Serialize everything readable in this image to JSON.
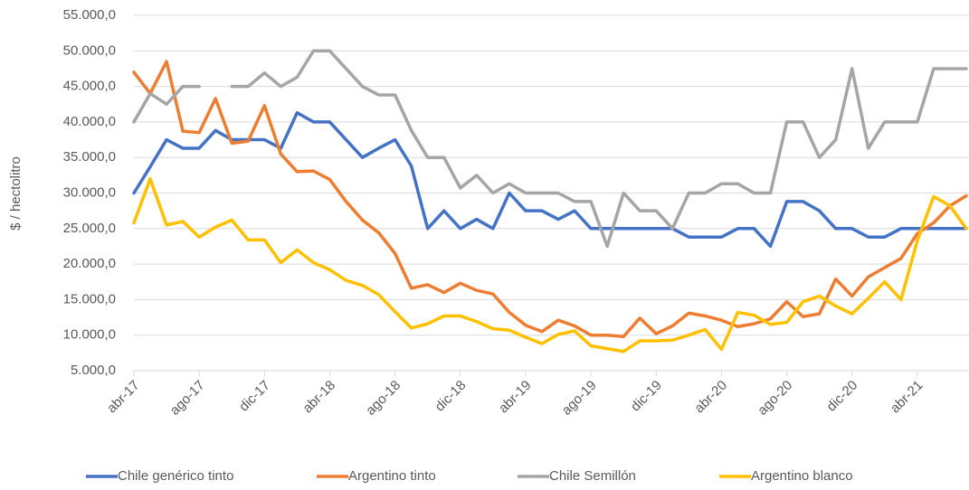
{
  "chart_data": {
    "type": "line",
    "y_label": "$ / hectolitro",
    "categories": [
      "abr-17",
      null,
      null,
      null,
      "ago-17",
      null,
      null,
      null,
      "dic-17",
      null,
      null,
      null,
      "abr-18",
      null,
      null,
      null,
      "ago-18",
      null,
      null,
      null,
      "dic-18",
      null,
      null,
      null,
      "abr-19",
      null,
      null,
      null,
      "ago-19",
      null,
      null,
      null,
      "dic-19",
      null,
      null,
      null,
      "abr-20",
      null,
      null,
      null,
      "ago-20",
      null,
      null,
      null,
      "dic-20",
      null,
      null,
      null,
      "abr-21",
      null,
      null,
      null
    ],
    "ylim": [
      5000,
      55000
    ],
    "yticks": [
      {
        "value": 5000,
        "label": "5.000,0"
      },
      {
        "value": 10000,
        "label": "10.000,0"
      },
      {
        "value": 15000,
        "label": "15.000,0"
      },
      {
        "value": 20000,
        "label": "20.000,0"
      },
      {
        "value": 25000,
        "label": "25.000,0"
      },
      {
        "value": 30000,
        "label": "30.000,0"
      },
      {
        "value": 35000,
        "label": "35.000,0"
      },
      {
        "value": 40000,
        "label": "40.000,0"
      },
      {
        "value": 45000,
        "label": "45.000,0"
      },
      {
        "value": 50000,
        "label": "50.000,0"
      },
      {
        "value": 55000,
        "label": "55.000,0"
      }
    ],
    "grid": true,
    "legend": "bottom",
    "series": [
      {
        "name": "Chile genérico tinto",
        "color": "#4472c4",
        "values": [
          30000,
          33700,
          37500,
          36300,
          36300,
          38800,
          37500,
          37500,
          37500,
          36300,
          41300,
          40000,
          40000,
          37500,
          35000,
          36300,
          37500,
          33800,
          25000,
          27500,
          25000,
          26300,
          25000,
          30000,
          27500,
          27500,
          26300,
          27500,
          25000,
          25000,
          25000,
          25000,
          25000,
          25000,
          23800,
          23800,
          23800,
          25000,
          25000,
          22500,
          28800,
          28800,
          27500,
          25000,
          25000,
          23800,
          23800,
          25000,
          25000,
          25000,
          25000,
          25000
        ]
      },
      {
        "name": "Argentino tinto",
        "color": "#ed7d31",
        "values": [
          47000,
          44000,
          48500,
          38700,
          38500,
          43300,
          37000,
          37300,
          42300,
          35500,
          33000,
          33100,
          31900,
          28800,
          26200,
          24400,
          21500,
          16600,
          17100,
          16000,
          17300,
          16300,
          15800,
          13200,
          11400,
          10500,
          12100,
          11300,
          10000,
          10000,
          9800,
          12400,
          10200,
          11300,
          13100,
          12700,
          12100,
          11200,
          11600,
          12300,
          14700,
          12600,
          13000,
          17900,
          15500,
          18200,
          19500,
          20800,
          24300,
          25800,
          28200,
          29600
        ]
      },
      {
        "name": "Chile Semillón",
        "color": "#a5a5a5",
        "values": [
          40000,
          44000,
          42500,
          45000,
          45000,
          null,
          45000,
          45000,
          46900,
          45000,
          46300,
          50000,
          50000,
          47500,
          45000,
          43800,
          43800,
          38800,
          35000,
          35000,
          30700,
          32500,
          30000,
          31300,
          30000,
          30000,
          30000,
          28800,
          28800,
          22500,
          30000,
          27500,
          27500,
          25000,
          30000,
          30000,
          31300,
          31300,
          30000,
          30000,
          40000,
          40000,
          35000,
          37500,
          47500,
          36300,
          40000,
          40000,
          40000,
          47500,
          47500,
          47500
        ]
      },
      {
        "name": "Argentino blanco",
        "color": "#ffc000",
        "values": [
          25800,
          32000,
          25500,
          26000,
          23800,
          25200,
          26200,
          23400,
          23400,
          20200,
          22000,
          20200,
          19200,
          17700,
          17000,
          15700,
          13300,
          11000,
          11600,
          12700,
          12700,
          11900,
          10900,
          10700,
          9700,
          8800,
          10100,
          10600,
          8500,
          8100,
          7700,
          9200,
          9200,
          9300,
          10000,
          10800,
          8000,
          13200,
          12800,
          11500,
          11800,
          14700,
          15500,
          14100,
          13000,
          15200,
          17500,
          15000,
          23300,
          29500,
          28200,
          25000
        ]
      }
    ]
  }
}
